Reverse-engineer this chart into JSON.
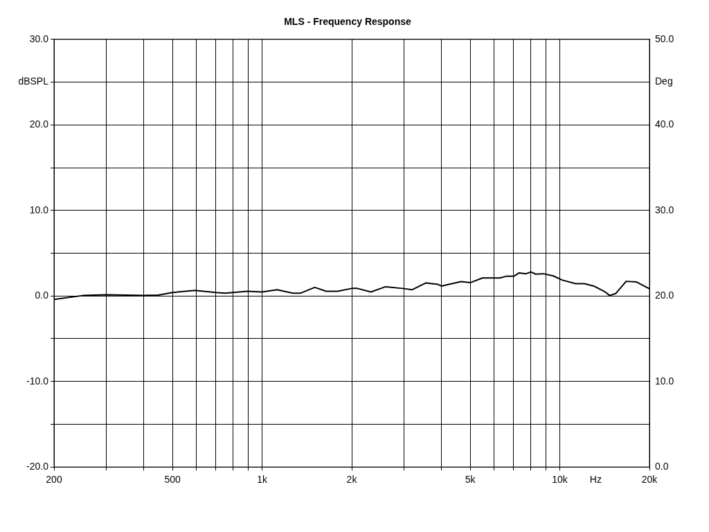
{
  "chart_data": {
    "type": "line",
    "title": "MLS - Frequency Response",
    "xlabel": "Hz",
    "ylabel": "dBSPL",
    "y2label": "Deg",
    "log": "x",
    "grid": true,
    "legend": false,
    "marker": "none",
    "line_style": "solid",
    "xlim": [
      200,
      20000
    ],
    "xticks": [
      {
        "value": 200,
        "label": "200"
      },
      {
        "value": 300,
        "label": null
      },
      {
        "value": 400,
        "label": null
      },
      {
        "value": 500,
        "label": "500"
      },
      {
        "value": 600,
        "label": null
      },
      {
        "value": 700,
        "label": null
      },
      {
        "value": 800,
        "label": null
      },
      {
        "value": 900,
        "label": null
      },
      {
        "value": 1000,
        "label": "1k"
      },
      {
        "value": 2000,
        "label": "2k"
      },
      {
        "value": 3000,
        "label": null
      },
      {
        "value": 4000,
        "label": null
      },
      {
        "value": 5000,
        "label": "5k"
      },
      {
        "value": 6000,
        "label": null
      },
      {
        "value": 7000,
        "label": null
      },
      {
        "value": 8000,
        "label": null
      },
      {
        "value": 9000,
        "label": null
      },
      {
        "value": 10000,
        "label": "10k"
      },
      {
        "value": 20000,
        "label": "20k"
      }
    ],
    "ylim": [
      -20,
      30
    ],
    "yticks": [
      {
        "value": -20,
        "label": "-20.0"
      },
      {
        "value": -15,
        "label": null
      },
      {
        "value": -10,
        "label": "-10.0"
      },
      {
        "value": -5,
        "label": null
      },
      {
        "value": 0,
        "label": "0.0"
      },
      {
        "value": 5,
        "label": null
      },
      {
        "value": 10,
        "label": "10.0"
      },
      {
        "value": 15,
        "label": null
      },
      {
        "value": 20,
        "label": "20.0"
      },
      {
        "value": 25,
        "label": null
      },
      {
        "value": 30,
        "label": "30.0"
      }
    ],
    "y2lim": [
      0,
      50
    ],
    "y2ticks": [
      {
        "value": 0,
        "label": "0.0"
      },
      {
        "value": 10,
        "label": "10.0"
      },
      {
        "value": 20,
        "label": "20.0"
      },
      {
        "value": 30,
        "label": "30.0"
      },
      {
        "value": 40,
        "label": "40.0"
      },
      {
        "value": 50,
        "label": "50.0"
      }
    ],
    "series": [
      {
        "color": "#000000",
        "x": [
          200,
          250,
          300,
          400,
          448,
          500,
          594,
          700,
          749,
          894,
          1000,
          1122,
          1270,
          1348,
          1502,
          1643,
          1793,
          2000,
          2090,
          2320,
          2600,
          3000,
          3187,
          3550,
          3900,
          4000,
          4660,
          5000,
          5500,
          6300,
          6600,
          7000,
          7300,
          7700,
          8000,
          8300,
          8800,
          9500,
          10200,
          11300,
          12100,
          13000,
          14200,
          14700,
          15400,
          16700,
          18100,
          20000
        ],
        "values": [
          -0.4,
          0.05,
          0.15,
          0.05,
          0.1,
          0.4,
          0.65,
          0.4,
          0.33,
          0.55,
          0.47,
          0.72,
          0.33,
          0.33,
          1.0,
          0.55,
          0.55,
          0.88,
          0.88,
          0.47,
          1.08,
          0.86,
          0.72,
          1.52,
          1.35,
          1.16,
          1.68,
          1.55,
          2.1,
          2.1,
          2.3,
          2.3,
          2.7,
          2.6,
          2.8,
          2.55,
          2.6,
          2.35,
          1.85,
          1.43,
          1.43,
          1.16,
          0.47,
          0.05,
          0.28,
          1.71,
          1.63,
          0.83
        ]
      }
    ]
  }
}
